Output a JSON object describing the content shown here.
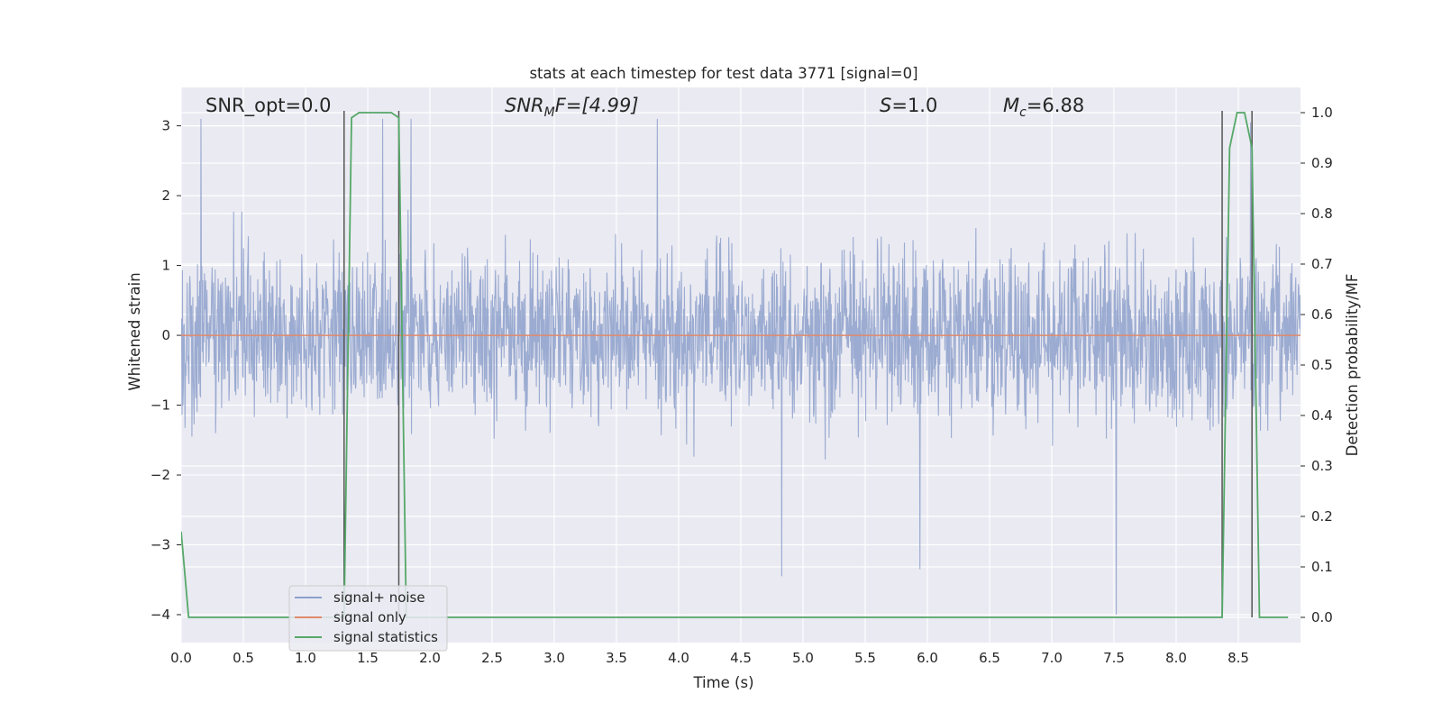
{
  "chart_data": {
    "type": "line",
    "title": "stats at each timestep for test data 3771 [signal=0]",
    "xlabel": "Time (s)",
    "ylabel_left": "Whitened strain",
    "ylabel_right": "Detection probability/MF",
    "xlim": [
      0.0,
      9.0
    ],
    "ylim_left": [
      -4.4,
      3.55
    ],
    "ylim_right": [
      -0.05,
      1.05
    ],
    "x_ticks": [
      "0.0",
      "0.5",
      "1.0",
      "1.5",
      "2.0",
      "2.5",
      "3.0",
      "3.5",
      "4.0",
      "4.5",
      "5.0",
      "5.5",
      "6.0",
      "6.5",
      "7.0",
      "7.5",
      "8.0",
      "8.5"
    ],
    "x_tick_values": [
      0.0,
      0.5,
      1.0,
      1.5,
      2.0,
      2.5,
      3.0,
      3.5,
      4.0,
      4.5,
      5.0,
      5.5,
      6.0,
      6.5,
      7.0,
      7.5,
      8.0,
      8.5
    ],
    "y_ticks_left": [
      "−4",
      "−3",
      "−2",
      "−1",
      "0",
      "1",
      "2",
      "3"
    ],
    "y_tick_values_left": [
      -4,
      -3,
      -2,
      -1,
      0,
      1,
      2,
      3
    ],
    "y_ticks_right": [
      "0.0",
      "0.1",
      "0.2",
      "0.3",
      "0.4",
      "0.5",
      "0.6",
      "0.7",
      "0.8",
      "0.9",
      "1.0"
    ],
    "y_tick_values_right": [
      0.0,
      0.1,
      0.2,
      0.3,
      0.4,
      0.5,
      0.6,
      0.7,
      0.8,
      0.9,
      1.0
    ],
    "grid": true,
    "legend_position": "lower-left",
    "annotations": {
      "snr_opt": "SNR_opt=0.0",
      "snr_mf_main": "SNR",
      "snr_mf_sub": "M",
      "snr_mf_rest": "F=[4.99]",
      "s_main": "S",
      "s_rest": "=1.0",
      "mc_main": "M",
      "mc_sub": "c",
      "mc_rest": "=6.88"
    },
    "series": [
      {
        "name": "signal+ noise",
        "color": "#8da0cb",
        "axis": "left",
        "style": "dense noise",
        "x_range": [
          0.0,
          9.0
        ],
        "envelope": {
          "typical_abs": 1.1,
          "max": 3.1,
          "min": -4.0
        },
        "notable_peaks": [
          {
            "x": 0.16,
            "y": 3.1
          },
          {
            "x": 1.62,
            "y": 3.1
          },
          {
            "x": 1.85,
            "y": 3.1
          },
          {
            "x": 3.83,
            "y": 3.1
          },
          {
            "x": 8.6,
            "y": 3.05
          },
          {
            "x": 4.83,
            "y": -3.45
          },
          {
            "x": 5.94,
            "y": -3.35
          },
          {
            "x": 7.52,
            "y": -4.0
          }
        ]
      },
      {
        "name": "signal only",
        "color": "#e08a6a",
        "axis": "left",
        "x": [
          0.0,
          9.0
        ],
        "y": [
          0.0,
          0.0
        ]
      },
      {
        "name": "signal statistics",
        "color": "#55a868",
        "axis": "right",
        "x": [
          0.0,
          0.06,
          0.12,
          1.31,
          1.37,
          1.43,
          1.69,
          1.75,
          1.81,
          8.37,
          8.43,
          8.49,
          8.55,
          8.61,
          8.67,
          8.73,
          8.9
        ],
        "y": [
          0.17,
          0.0,
          0.0,
          0.0,
          0.99,
          1.0,
          1.0,
          0.99,
          0.0,
          0.0,
          0.93,
          1.0,
          1.0,
          0.93,
          0.0,
          0.0,
          0.0
        ]
      }
    ],
    "vertical_markers": [
      1.31,
      1.75,
      8.37,
      8.61
    ],
    "marker_color": "#555555",
    "colors": {
      "plot_background": "#eaeaf2",
      "grid": "#ffffff",
      "text": "#262626"
    }
  }
}
